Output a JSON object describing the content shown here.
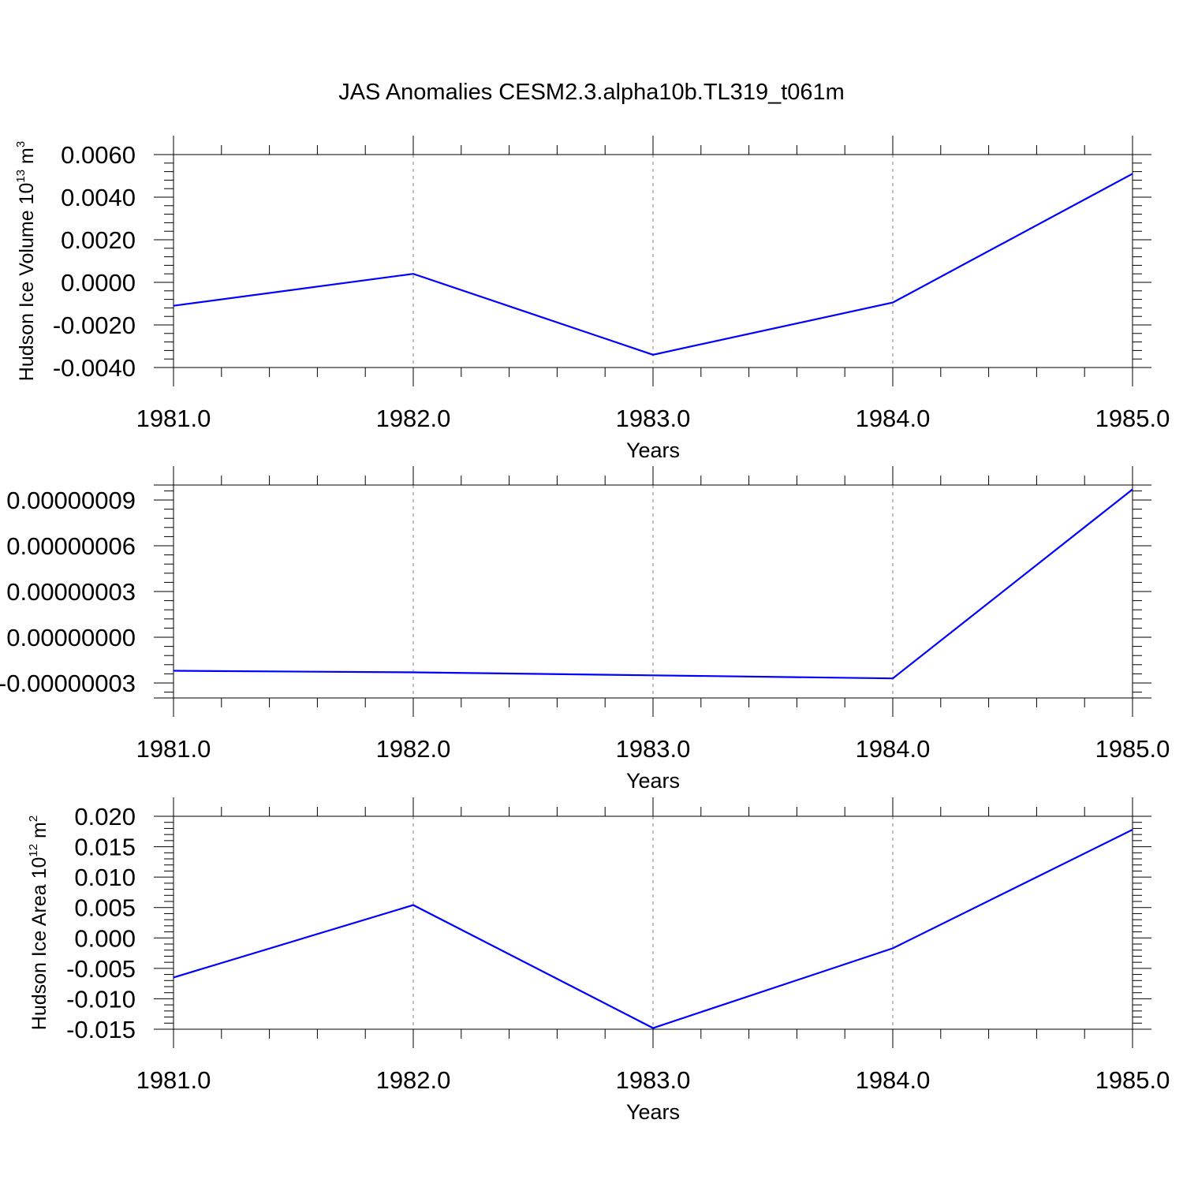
{
  "figure": {
    "title": "JAS Anomalies CESM2.3.alpha10b.TL319_t061m"
  },
  "chart_data": [
    {
      "type": "line",
      "title": "JAS Anomalies CESM2.3.alpha10b.TL319_t061m",
      "xlabel": "Years",
      "ylabel": {
        "text": "Hudson Ice Volume 10",
        "sup": "13",
        "tail": " m",
        "tail_sup": "3"
      },
      "x": [
        1981,
        1982,
        1983,
        1984,
        1985
      ],
      "series": [
        {
          "values": [
            -0.0011,
            0.0004,
            -0.0034,
            -0.00095,
            0.0051
          ],
          "color": "#0000ff"
        }
      ],
      "xlim": [
        1981,
        1985
      ],
      "ylim": [
        -0.004,
        0.006
      ],
      "xticks": [
        1981,
        1982,
        1983,
        1984,
        1985
      ],
      "xtick_labels": [
        "1981.0",
        "1982.0",
        "1983.0",
        "1984.0",
        "1985.0"
      ],
      "yticks": [
        0.006,
        0.004,
        0.002,
        0,
        -0.002,
        -0.004
      ],
      "ytick_labels": [
        "0.0060",
        "0.0040",
        "0.0020",
        "0.0000",
        "-0.0020",
        "-0.0040"
      ],
      "grid": "x-dashed"
    },
    {
      "type": "line",
      "xlabel": "Years",
      "ylabel": null,
      "x": [
        1981,
        1982,
        1983,
        1984,
        1985
      ],
      "series": [
        {
          "values": [
            -2.2e-08,
            -2.3e-08,
            -2.5e-08,
            -2.7e-08,
            9.7e-08
          ],
          "color": "#0000ff"
        }
      ],
      "xlim": [
        1981,
        1985
      ],
      "ylim": [
        -4e-08,
        1e-07
      ],
      "xticks": [
        1981,
        1982,
        1983,
        1984,
        1985
      ],
      "xtick_labels": [
        "1981.0",
        "1982.0",
        "1983.0",
        "1984.0",
        "1985.0"
      ],
      "yticks": [
        9e-08,
        6e-08,
        3e-08,
        0,
        -3e-08
      ],
      "ytick_labels": [
        "0.00000009",
        "0.00000006",
        "0.00000003",
        "0.00000000",
        "-0.00000003"
      ],
      "grid": "x-dashed"
    },
    {
      "type": "line",
      "xlabel": "Years",
      "ylabel": {
        "text": "Hudson Ice Area 10",
        "sup": "12",
        "tail": " m",
        "tail_sup": "2"
      },
      "x": [
        1981,
        1982,
        1983,
        1984,
        1985
      ],
      "series": [
        {
          "values": [
            -0.0065,
            0.0054,
            -0.0148,
            -0.0017,
            0.0178
          ],
          "color": "#0000ff"
        }
      ],
      "xlim": [
        1981,
        1985
      ],
      "ylim": [
        -0.015,
        0.02
      ],
      "xticks": [
        1981,
        1982,
        1983,
        1984,
        1985
      ],
      "xtick_labels": [
        "1981.0",
        "1982.0",
        "1983.0",
        "1984.0",
        "1985.0"
      ],
      "yticks": [
        0.02,
        0.015,
        0.01,
        0.005,
        0,
        -0.005,
        -0.01,
        -0.015
      ],
      "ytick_labels": [
        "0.020",
        "0.015",
        "0.010",
        "0.005",
        "0.000",
        "-0.005",
        "-0.010",
        "-0.015"
      ],
      "grid": "x-dashed"
    }
  ]
}
